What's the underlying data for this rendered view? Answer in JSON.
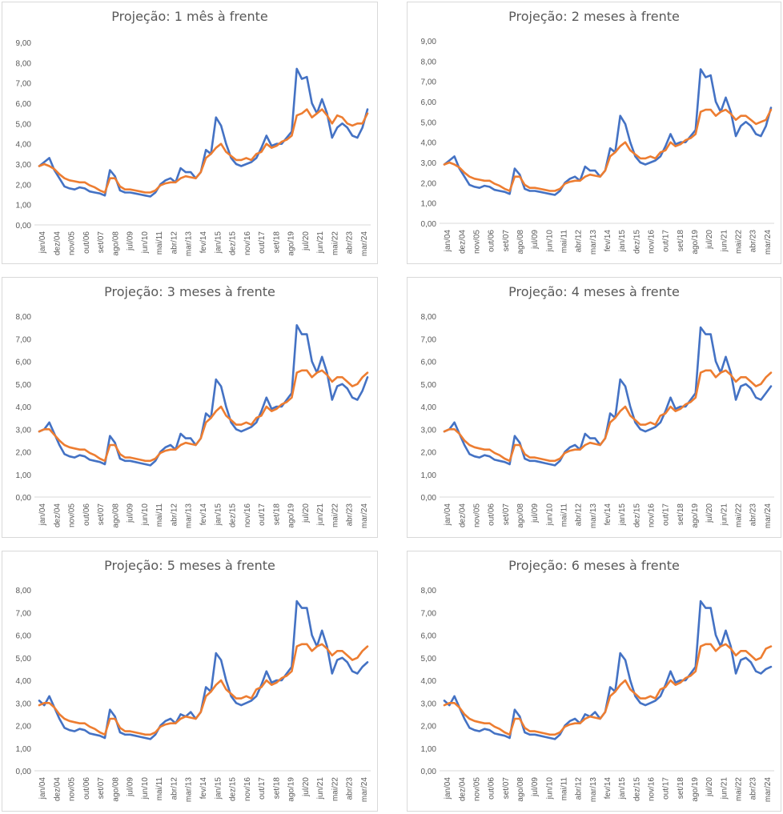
{
  "series_colors": {
    "blue": "#4472c4",
    "orange": "#ed7d31"
  },
  "tick_labels": [
    "jan/04",
    "dez/04",
    "nov/05",
    "out/06",
    "set/07",
    "ago/08",
    "jul/09",
    "jun/10",
    "mai/11",
    "abr/12",
    "mar/13",
    "fev/14",
    "jan/15",
    "dez/15",
    "nov/16",
    "out/17",
    "set/18",
    "ago/19",
    "jul/20",
    "jun/21",
    "mai/22",
    "abr/23",
    "mar/24"
  ],
  "chart_data": [
    {
      "type": "line",
      "title": "Projeção: 1 mês à frente",
      "y_ticks": [
        "0,00",
        "1,00",
        "2,00",
        "3,00",
        "4,00",
        "5,00",
        "6,00",
        "7,00",
        "8,00",
        "9,00"
      ],
      "ylim": [
        0,
        9
      ],
      "grid": false,
      "series": [
        {
          "color": "#4472c4",
          "values": [
            2.9,
            3.1,
            3.3,
            2.7,
            2.3,
            1.9,
            1.8,
            1.75,
            1.85,
            1.8,
            1.65,
            1.6,
            1.55,
            1.45,
            2.7,
            2.4,
            1.7,
            1.6,
            1.6,
            1.55,
            1.5,
            1.45,
            1.4,
            1.6,
            2.0,
            2.2,
            2.3,
            2.1,
            2.8,
            2.6,
            2.6,
            2.3,
            2.6,
            3.7,
            3.5,
            5.3,
            4.9,
            4.0,
            3.3,
            3.0,
            2.9,
            3.0,
            3.1,
            3.3,
            3.8,
            4.4,
            3.9,
            4.0,
            4.0,
            4.3,
            4.6,
            7.7,
            7.2,
            7.3,
            6.0,
            5.5,
            6.2,
            5.5,
            4.3,
            4.8,
            5.0,
            4.8,
            4.4,
            4.3,
            4.8,
            5.7
          ]
        },
        {
          "color": "#ed7d31",
          "values": [
            2.9,
            3.0,
            2.9,
            2.75,
            2.5,
            2.3,
            2.2,
            2.15,
            2.1,
            2.1,
            1.95,
            1.85,
            1.7,
            1.6,
            2.3,
            2.3,
            1.9,
            1.75,
            1.75,
            1.7,
            1.65,
            1.6,
            1.6,
            1.7,
            1.95,
            2.05,
            2.1,
            2.1,
            2.3,
            2.4,
            2.35,
            2.3,
            2.6,
            3.3,
            3.5,
            3.8,
            4.0,
            3.6,
            3.4,
            3.2,
            3.2,
            3.3,
            3.2,
            3.5,
            3.6,
            4.0,
            3.8,
            3.9,
            4.1,
            4.2,
            4.4,
            5.4,
            5.5,
            5.7,
            5.3,
            5.5,
            5.7,
            5.4,
            5.0,
            5.4,
            5.3,
            5.0,
            4.9,
            5.0,
            5.0,
            5.5
          ]
        }
      ]
    },
    {
      "type": "line",
      "title": "Projeção: 2 meses à frente",
      "y_ticks": [
        "0,00",
        "1,00",
        "2,00",
        "3,00",
        "4,00",
        "5,00",
        "6,00",
        "7,00",
        "8,00",
        "9,00"
      ],
      "ylim": [
        0,
        9
      ],
      "grid": false,
      "series": [
        {
          "color": "#4472c4",
          "values": [
            2.9,
            3.1,
            3.3,
            2.7,
            2.3,
            1.9,
            1.8,
            1.75,
            1.85,
            1.8,
            1.65,
            1.6,
            1.55,
            1.45,
            2.7,
            2.4,
            1.7,
            1.6,
            1.6,
            1.55,
            1.5,
            1.45,
            1.4,
            1.6,
            2.0,
            2.2,
            2.3,
            2.1,
            2.8,
            2.6,
            2.6,
            2.3,
            2.6,
            3.7,
            3.5,
            5.3,
            4.9,
            4.0,
            3.3,
            3.0,
            2.9,
            3.0,
            3.1,
            3.3,
            3.8,
            4.4,
            3.9,
            4.0,
            4.0,
            4.3,
            4.6,
            7.6,
            7.2,
            7.3,
            6.0,
            5.5,
            6.2,
            5.5,
            4.3,
            4.8,
            5.0,
            4.8,
            4.4,
            4.3,
            4.8,
            5.7
          ]
        },
        {
          "color": "#ed7d31",
          "values": [
            2.9,
            3.0,
            2.9,
            2.75,
            2.5,
            2.3,
            2.2,
            2.15,
            2.1,
            2.1,
            1.95,
            1.85,
            1.7,
            1.6,
            2.3,
            2.3,
            1.9,
            1.75,
            1.75,
            1.7,
            1.65,
            1.6,
            1.6,
            1.7,
            1.95,
            2.05,
            2.1,
            2.1,
            2.3,
            2.4,
            2.35,
            2.3,
            2.6,
            3.3,
            3.5,
            3.8,
            4.0,
            3.6,
            3.4,
            3.2,
            3.2,
            3.3,
            3.2,
            3.5,
            3.6,
            4.0,
            3.8,
            3.9,
            4.1,
            4.2,
            4.4,
            5.5,
            5.6,
            5.6,
            5.3,
            5.5,
            5.6,
            5.4,
            5.1,
            5.3,
            5.3,
            5.1,
            4.9,
            5.0,
            5.1,
            5.6
          ]
        }
      ]
    },
    {
      "type": "line",
      "title": "Projeção: 3 meses à frente",
      "y_ticks": [
        "0,00",
        "1,00",
        "2,00",
        "3,00",
        "4,00",
        "5,00",
        "6,00",
        "7,00",
        "8,00"
      ],
      "ylim": [
        0,
        8
      ],
      "grid": false,
      "series": [
        {
          "color": "#4472c4",
          "values": [
            2.9,
            3.0,
            3.3,
            2.8,
            2.3,
            1.9,
            1.8,
            1.75,
            1.85,
            1.8,
            1.65,
            1.6,
            1.55,
            1.45,
            2.7,
            2.4,
            1.7,
            1.6,
            1.6,
            1.55,
            1.5,
            1.45,
            1.4,
            1.6,
            2.0,
            2.2,
            2.3,
            2.1,
            2.8,
            2.6,
            2.6,
            2.3,
            2.6,
            3.7,
            3.5,
            5.2,
            4.9,
            4.0,
            3.3,
            3.0,
            2.9,
            3.0,
            3.1,
            3.3,
            3.8,
            4.4,
            3.9,
            4.0,
            4.0,
            4.3,
            4.6,
            7.6,
            7.2,
            7.2,
            6.0,
            5.5,
            6.2,
            5.5,
            4.3,
            4.9,
            5.0,
            4.8,
            4.4,
            4.3,
            4.7,
            5.3
          ]
        },
        {
          "color": "#ed7d31",
          "values": [
            2.9,
            3.0,
            3.0,
            2.75,
            2.5,
            2.3,
            2.2,
            2.15,
            2.1,
            2.1,
            1.95,
            1.85,
            1.7,
            1.6,
            2.3,
            2.3,
            1.9,
            1.75,
            1.75,
            1.7,
            1.65,
            1.6,
            1.6,
            1.7,
            1.95,
            2.05,
            2.1,
            2.1,
            2.3,
            2.4,
            2.35,
            2.3,
            2.6,
            3.3,
            3.5,
            3.8,
            4.0,
            3.6,
            3.4,
            3.2,
            3.2,
            3.3,
            3.2,
            3.5,
            3.6,
            4.0,
            3.8,
            3.9,
            4.1,
            4.2,
            4.4,
            5.5,
            5.6,
            5.6,
            5.3,
            5.5,
            5.6,
            5.4,
            5.1,
            5.3,
            5.3,
            5.1,
            4.9,
            5.0,
            5.3,
            5.5
          ]
        }
      ]
    },
    {
      "type": "line",
      "title": "Projeção: 4 meses à frente",
      "y_ticks": [
        "0,00",
        "1,00",
        "2,00",
        "3,00",
        "4,00",
        "5,00",
        "6,00",
        "7,00",
        "8,00"
      ],
      "ylim": [
        0,
        8
      ],
      "grid": false,
      "series": [
        {
          "color": "#4472c4",
          "values": [
            2.9,
            3.0,
            3.3,
            2.8,
            2.3,
            1.9,
            1.8,
            1.75,
            1.85,
            1.8,
            1.65,
            1.6,
            1.55,
            1.45,
            2.7,
            2.4,
            1.7,
            1.6,
            1.6,
            1.55,
            1.5,
            1.45,
            1.4,
            1.6,
            2.0,
            2.2,
            2.3,
            2.1,
            2.8,
            2.6,
            2.6,
            2.3,
            2.6,
            3.7,
            3.5,
            5.2,
            4.9,
            4.0,
            3.3,
            3.0,
            2.9,
            3.0,
            3.1,
            3.3,
            3.8,
            4.4,
            3.9,
            4.0,
            4.0,
            4.3,
            4.6,
            7.5,
            7.2,
            7.2,
            6.0,
            5.5,
            6.2,
            5.5,
            4.3,
            4.9,
            5.0,
            4.8,
            4.4,
            4.3,
            4.6,
            4.9
          ]
        },
        {
          "color": "#ed7d31",
          "values": [
            2.9,
            3.0,
            3.0,
            2.8,
            2.5,
            2.3,
            2.2,
            2.15,
            2.1,
            2.1,
            1.95,
            1.85,
            1.7,
            1.6,
            2.3,
            2.3,
            1.9,
            1.75,
            1.75,
            1.7,
            1.65,
            1.6,
            1.6,
            1.7,
            1.95,
            2.05,
            2.1,
            2.1,
            2.3,
            2.4,
            2.35,
            2.3,
            2.6,
            3.3,
            3.5,
            3.8,
            4.0,
            3.6,
            3.4,
            3.2,
            3.2,
            3.3,
            3.2,
            3.6,
            3.7,
            4.0,
            3.8,
            3.9,
            4.1,
            4.2,
            4.4,
            5.5,
            5.6,
            5.6,
            5.3,
            5.5,
            5.6,
            5.4,
            5.1,
            5.3,
            5.3,
            5.1,
            4.9,
            5.0,
            5.3,
            5.5
          ]
        }
      ]
    },
    {
      "type": "line",
      "title": "Projeção: 5 meses à frente",
      "y_ticks": [
        "0,00",
        "1,00",
        "2,00",
        "3,00",
        "4,00",
        "5,00",
        "6,00",
        "7,00",
        "8,00"
      ],
      "ylim": [
        0,
        8
      ],
      "grid": false,
      "series": [
        {
          "color": "#4472c4",
          "values": [
            3.1,
            2.9,
            3.3,
            2.8,
            2.3,
            1.9,
            1.8,
            1.75,
            1.85,
            1.8,
            1.65,
            1.6,
            1.55,
            1.45,
            2.7,
            2.4,
            1.7,
            1.6,
            1.6,
            1.55,
            1.5,
            1.45,
            1.4,
            1.6,
            2.0,
            2.2,
            2.3,
            2.1,
            2.5,
            2.4,
            2.6,
            2.3,
            2.6,
            3.7,
            3.5,
            5.2,
            4.9,
            4.0,
            3.3,
            3.0,
            2.9,
            3.0,
            3.1,
            3.3,
            3.8,
            4.4,
            3.9,
            4.0,
            4.0,
            4.3,
            4.6,
            7.5,
            7.2,
            7.2,
            6.0,
            5.5,
            6.2,
            5.5,
            4.3,
            4.9,
            5.0,
            4.8,
            4.4,
            4.3,
            4.6,
            4.8
          ]
        },
        {
          "color": "#ed7d31",
          "values": [
            2.9,
            3.0,
            3.0,
            2.8,
            2.5,
            2.3,
            2.2,
            2.15,
            2.1,
            2.1,
            1.95,
            1.85,
            1.7,
            1.6,
            2.3,
            2.3,
            1.9,
            1.75,
            1.75,
            1.7,
            1.65,
            1.6,
            1.6,
            1.7,
            1.95,
            2.05,
            2.1,
            2.1,
            2.3,
            2.4,
            2.35,
            2.3,
            2.6,
            3.3,
            3.5,
            3.8,
            4.0,
            3.6,
            3.4,
            3.2,
            3.2,
            3.3,
            3.2,
            3.6,
            3.7,
            4.0,
            3.8,
            3.9,
            4.1,
            4.2,
            4.4,
            5.5,
            5.6,
            5.6,
            5.3,
            5.5,
            5.6,
            5.4,
            5.1,
            5.3,
            5.3,
            5.1,
            4.9,
            5.0,
            5.3,
            5.5
          ]
        }
      ]
    },
    {
      "type": "line",
      "title": "Projeção: 6 meses à frente",
      "y_ticks": [
        "0,00",
        "1,00",
        "2,00",
        "3,00",
        "4,00",
        "5,00",
        "6,00",
        "7,00",
        "8,00"
      ],
      "ylim": [
        0,
        8
      ],
      "grid": false,
      "series": [
        {
          "color": "#4472c4",
          "values": [
            3.1,
            2.9,
            3.3,
            2.8,
            2.3,
            1.9,
            1.8,
            1.75,
            1.85,
            1.8,
            1.65,
            1.6,
            1.55,
            1.45,
            2.7,
            2.4,
            1.7,
            1.6,
            1.6,
            1.55,
            1.5,
            1.45,
            1.4,
            1.6,
            2.0,
            2.2,
            2.3,
            2.1,
            2.5,
            2.4,
            2.6,
            2.3,
            2.6,
            3.7,
            3.5,
            5.2,
            4.9,
            4.0,
            3.3,
            3.0,
            2.9,
            3.0,
            3.1,
            3.3,
            3.8,
            4.4,
            3.9,
            4.0,
            4.0,
            4.3,
            4.6,
            7.5,
            7.2,
            7.2,
            6.0,
            5.5,
            6.2,
            5.5,
            4.3,
            4.9,
            5.0,
            4.8,
            4.4,
            4.3,
            4.5,
            4.6
          ]
        },
        {
          "color": "#ed7d31",
          "values": [
            2.9,
            3.0,
            3.0,
            2.8,
            2.5,
            2.3,
            2.2,
            2.15,
            2.1,
            2.1,
            1.95,
            1.85,
            1.7,
            1.6,
            2.3,
            2.3,
            1.9,
            1.75,
            1.75,
            1.7,
            1.65,
            1.6,
            1.6,
            1.7,
            1.95,
            2.05,
            2.1,
            2.1,
            2.3,
            2.4,
            2.35,
            2.3,
            2.6,
            3.3,
            3.5,
            3.8,
            4.0,
            3.6,
            3.4,
            3.2,
            3.2,
            3.3,
            3.2,
            3.6,
            3.7,
            4.0,
            3.8,
            3.9,
            4.1,
            4.2,
            4.4,
            5.5,
            5.6,
            5.6,
            5.3,
            5.5,
            5.6,
            5.4,
            5.1,
            5.3,
            5.3,
            5.1,
            4.9,
            5.0,
            5.4,
            5.5
          ]
        }
      ]
    }
  ]
}
